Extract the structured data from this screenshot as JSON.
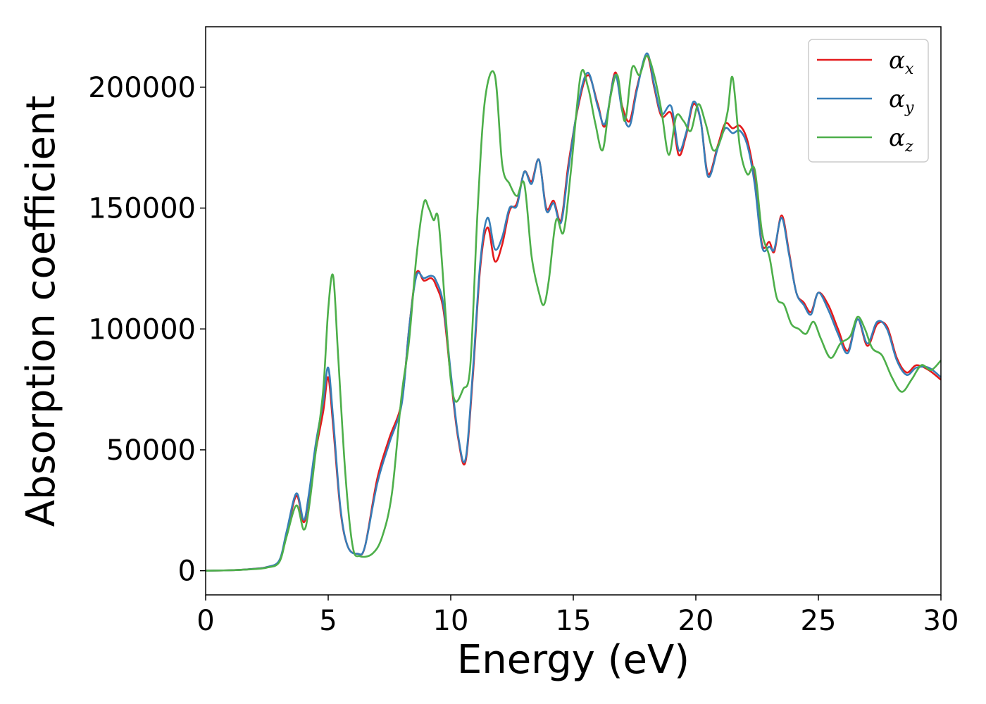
{
  "chart_data": {
    "type": "line",
    "xlabel": "Energy (eV)",
    "ylabel": "Absorption coefficient",
    "xlim": [
      0,
      30
    ],
    "ylim": [
      -10000,
      225000
    ],
    "xticks": [
      0,
      5,
      10,
      15,
      20,
      25,
      30
    ],
    "yticks": [
      0,
      50000,
      100000,
      150000,
      200000
    ],
    "grid": false,
    "legend_position": "top-right",
    "series": [
      {
        "name": "αx",
        "symbol": "α",
        "subscript": "x",
        "color": "#e41a1c",
        "x": [
          0,
          1,
          2,
          2.5,
          3,
          3.3,
          3.7,
          4.0,
          4.2,
          4.5,
          4.8,
          5.0,
          5.2,
          5.5,
          5.8,
          6.2,
          6.5,
          7.0,
          7.5,
          8.0,
          8.3,
          8.6,
          8.9,
          9.2,
          9.4,
          9.7,
          10.0,
          10.3,
          10.6,
          10.9,
          11.2,
          11.5,
          11.8,
          12.1,
          12.4,
          12.7,
          13.0,
          13.3,
          13.6,
          13.9,
          14.2,
          14.5,
          14.8,
          15.2,
          15.6,
          16.0,
          16.3,
          16.7,
          17.0,
          17.3,
          17.6,
          18.0,
          18.3,
          18.6,
          19.0,
          19.3,
          19.6,
          19.9,
          20.2,
          20.5,
          20.9,
          21.2,
          21.5,
          21.8,
          22.1,
          22.4,
          22.7,
          23.0,
          23.2,
          23.5,
          23.8,
          24.1,
          24.4,
          24.7,
          25.0,
          25.4,
          25.8,
          26.2,
          26.6,
          27.0,
          27.4,
          27.8,
          28.2,
          28.6,
          29.0,
          29.5,
          30.0
        ],
        "values": [
          0,
          200,
          800,
          1500,
          4000,
          15000,
          31000,
          20000,
          30000,
          50000,
          66000,
          80000,
          60000,
          25000,
          10000,
          7000,
          10000,
          38000,
          55000,
          70000,
          100000,
          123000,
          120000,
          121000,
          118000,
          108000,
          80000,
          55000,
          45000,
          80000,
          125000,
          142000,
          128000,
          135000,
          149000,
          152000,
          165000,
          161000,
          170000,
          150000,
          153000,
          145000,
          168000,
          192000,
          205000,
          193000,
          184000,
          206000,
          192000,
          186000,
          200000,
          213000,
          200000,
          188000,
          189000,
          172000,
          180000,
          193000,
          186000,
          164000,
          176000,
          185000,
          183000,
          184000,
          178000,
          162000,
          135000,
          136000,
          132000,
          147000,
          132000,
          115000,
          111000,
          107000,
          115000,
          110000,
          100000,
          91000,
          104000,
          93000,
          102000,
          101000,
          88000,
          82000,
          85000,
          83000,
          79000
        ]
      },
      {
        "name": "αy",
        "symbol": "α",
        "subscript": "y",
        "color": "#377eb8",
        "x": [
          0,
          1,
          2,
          2.5,
          3,
          3.3,
          3.7,
          4.0,
          4.2,
          4.5,
          4.8,
          5.0,
          5.2,
          5.5,
          5.8,
          6.2,
          6.5,
          7.0,
          7.5,
          8.0,
          8.3,
          8.6,
          8.9,
          9.2,
          9.4,
          9.7,
          10.0,
          10.3,
          10.6,
          10.9,
          11.2,
          11.5,
          11.8,
          12.1,
          12.4,
          12.7,
          13.0,
          13.3,
          13.6,
          13.9,
          14.2,
          14.5,
          14.8,
          15.2,
          15.6,
          16.0,
          16.3,
          16.7,
          17.0,
          17.3,
          17.6,
          18.0,
          18.3,
          18.6,
          19.0,
          19.3,
          19.6,
          19.9,
          20.2,
          20.5,
          20.9,
          21.2,
          21.5,
          21.8,
          22.1,
          22.4,
          22.7,
          23.0,
          23.2,
          23.5,
          23.8,
          24.1,
          24.4,
          24.7,
          25.0,
          25.4,
          25.8,
          26.2,
          26.6,
          27.0,
          27.4,
          27.8,
          28.2,
          28.6,
          29.0,
          29.5,
          30.0
        ],
        "values": [
          0,
          200,
          800,
          1500,
          4200,
          16000,
          32000,
          21000,
          31000,
          53000,
          70000,
          84000,
          63000,
          26000,
          10000,
          7000,
          10000,
          36000,
          53000,
          69000,
          100000,
          122000,
          121000,
          122000,
          120000,
          110000,
          82000,
          56000,
          46000,
          82000,
          127000,
          146000,
          133000,
          138000,
          150000,
          151000,
          165000,
          160000,
          170000,
          149000,
          152000,
          144000,
          166000,
          193000,
          206000,
          192000,
          185000,
          205000,
          190000,
          184000,
          199000,
          214000,
          201000,
          189000,
          192000,
          174000,
          181000,
          194000,
          186000,
          163000,
          175000,
          183000,
          181000,
          182000,
          176000,
          160000,
          134000,
          134000,
          133000,
          146000,
          131000,
          115000,
          110000,
          106000,
          115000,
          108000,
          98000,
          90000,
          104000,
          94000,
          103000,
          100000,
          87000,
          81000,
          84000,
          84000,
          80000
        ]
      },
      {
        "name": "αz",
        "symbol": "α",
        "subscript": "z",
        "color": "#4daf4a",
        "x": [
          0,
          1,
          2,
          2.5,
          3,
          3.3,
          3.7,
          4.0,
          4.2,
          4.5,
          4.8,
          5.0,
          5.2,
          5.4,
          5.7,
          6.0,
          6.3,
          6.8,
          7.2,
          7.6,
          8.0,
          8.3,
          8.6,
          8.9,
          9.1,
          9.3,
          9.5,
          9.8,
          10.0,
          10.2,
          10.5,
          10.8,
          11.1,
          11.4,
          11.8,
          12.1,
          12.4,
          12.7,
          13.0,
          13.3,
          13.6,
          13.8,
          14.0,
          14.3,
          14.6,
          14.9,
          15.3,
          15.6,
          15.9,
          16.2,
          16.5,
          16.8,
          17.1,
          17.4,
          17.7,
          18.0,
          18.3,
          18.6,
          18.9,
          19.2,
          19.5,
          19.8,
          20.1,
          20.4,
          20.7,
          21.0,
          21.3,
          21.5,
          21.8,
          22.1,
          22.4,
          22.7,
          23.0,
          23.3,
          23.6,
          23.9,
          24.2,
          24.5,
          24.8,
          25.1,
          25.5,
          25.9,
          26.3,
          26.6,
          26.9,
          27.2,
          27.6,
          28.0,
          28.4,
          28.8,
          29.2,
          29.6,
          30.0
        ],
        "values": [
          0,
          200,
          700,
          1300,
          3500,
          14000,
          27000,
          17000,
          25000,
          50000,
          75000,
          108000,
          122000,
          90000,
          40000,
          10000,
          6000,
          7000,
          14000,
          32000,
          73000,
          95000,
          130000,
          152000,
          150000,
          145000,
          145000,
          105000,
          79000,
          70000,
          75000,
          85000,
          150000,
          195000,
          205000,
          168000,
          160000,
          155000,
          160000,
          130000,
          115000,
          110000,
          120000,
          145000,
          140000,
          165000,
          205000,
          200000,
          185000,
          174000,
          195000,
          205000,
          186000,
          208000,
          205000,
          213000,
          205000,
          190000,
          172000,
          188000,
          186000,
          182000,
          193000,
          185000,
          174000,
          178000,
          190000,
          204000,
          175000,
          164000,
          166000,
          140000,
          130000,
          113000,
          110000,
          102000,
          100000,
          98000,
          103000,
          96000,
          88000,
          94000,
          97000,
          105000,
          100000,
          92000,
          89000,
          80000,
          74000,
          79000,
          85000,
          83000,
          87000
        ]
      }
    ]
  }
}
